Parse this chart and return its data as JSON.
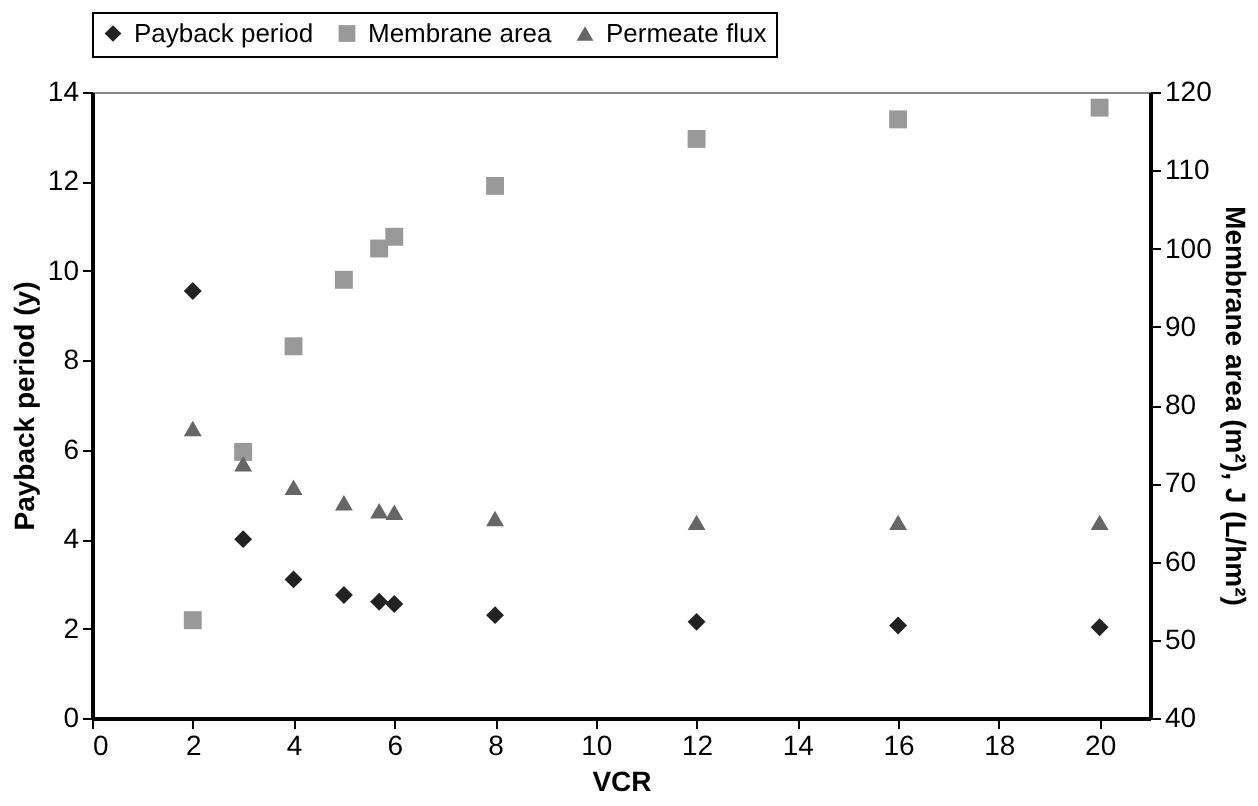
{
  "chart_data": {
    "type": "scatter",
    "xlabel": "VCR",
    "ylabel": "Payback period (y)",
    "y2label": "Membrane area (m²), J (L/hm²)",
    "x": [
      2,
      3,
      4,
      5,
      5.7,
      6,
      8,
      12,
      16,
      20
    ],
    "series": [
      {
        "name": "Payback period",
        "color": "#222222",
        "marker": "diamond",
        "values": [
          9.55,
          4.0,
          3.1,
          2.75,
          2.6,
          2.55,
          2.3,
          2.15,
          2.07,
          2.03
        ]
      },
      {
        "name": "Membrane area",
        "color": "#999999",
        "marker": "square",
        "axis": "y2",
        "values": [
          52.5,
          74,
          87.5,
          96,
          100,
          101.5,
          108,
          114,
          116.5,
          118
        ]
      },
      {
        "name": "Permeate flux",
        "color": "#666666",
        "marker": "triangle",
        "axis": "y2",
        "values": [
          77,
          72.5,
          69.5,
          67.5,
          66.5,
          66.3,
          65.5,
          65,
          65,
          65
        ]
      }
    ],
    "xlim": [
      0,
      21
    ],
    "xticks": [
      0,
      2,
      4,
      6,
      8,
      10,
      12,
      14,
      16,
      18,
      20
    ],
    "ylim": [
      0,
      14
    ],
    "yticks": [
      0,
      2,
      4,
      6,
      8,
      10,
      12,
      14
    ],
    "y2lim": [
      40,
      120
    ],
    "y2ticks": [
      40,
      50,
      60,
      70,
      80,
      90,
      100,
      110,
      120
    ],
    "legend": "top",
    "grid": false
  }
}
